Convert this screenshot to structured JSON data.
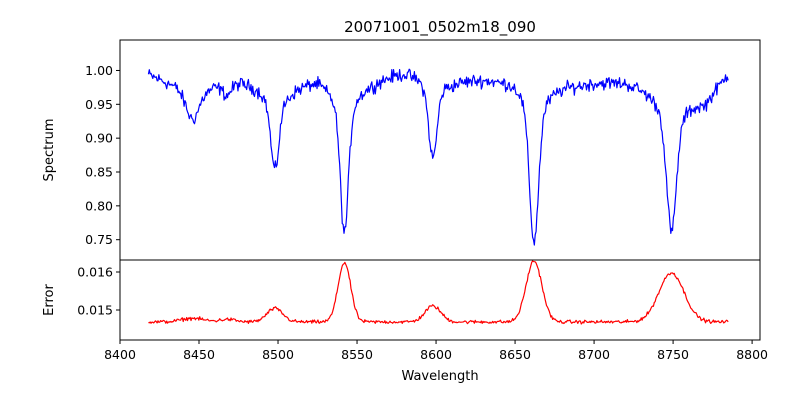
{
  "chart_data": {
    "type": "line",
    "title": "20071001_0502m18_090",
    "xlabel": "Wavelength",
    "xlim": [
      8400,
      8805
    ],
    "xticks": [
      "8400",
      "8450",
      "8500",
      "8550",
      "8600",
      "8650",
      "8700",
      "8750",
      "8800"
    ],
    "x_range": [
      8418,
      8785
    ],
    "grid": false,
    "legend": "none",
    "panels": [
      {
        "ylabel": "Spectrum",
        "ylim": [
          0.72,
          1.045
        ],
        "yticks": [
          "0.75",
          "0.80",
          "0.85",
          "0.90",
          "0.95",
          "1.00"
        ],
        "color": "#0000ff",
        "continuum": [
          [
            8418,
            0.995
          ],
          [
            8440,
            0.975
          ],
          [
            8455,
            0.975
          ],
          [
            8470,
            0.99
          ],
          [
            8490,
            0.98
          ],
          [
            8505,
            0.975
          ],
          [
            8525,
            1.0
          ],
          [
            8560,
            0.995
          ],
          [
            8580,
            1.005
          ],
          [
            8610,
            0.99
          ],
          [
            8640,
            1.0
          ],
          [
            8650,
            1.01
          ],
          [
            8690,
            0.99
          ],
          [
            8720,
            0.99
          ],
          [
            8740,
            0.98
          ],
          [
            8770,
            0.96
          ],
          [
            8785,
            1.0
          ]
        ],
        "lines": [
          {
            "center": 8542,
            "depth": 0.235,
            "core_width": 2.5,
            "wing_width": 11
          },
          {
            "center": 8662,
            "depth": 0.255,
            "core_width": 2.8,
            "wing_width": 13
          },
          {
            "center": 8498,
            "depth": 0.12,
            "core_width": 2.5,
            "wing_width": 7
          },
          {
            "center": 8598,
            "depth": 0.12,
            "core_width": 2.5,
            "wing_width": 7
          },
          {
            "center": 8749,
            "depth": 0.21,
            "core_width": 3.0,
            "wing_width": 11
          },
          {
            "center": 8446,
            "depth": 0.045,
            "core_width": 4.0,
            "wing_width": 6
          },
          {
            "center": 8468,
            "depth": 0.02,
            "core_width": 3.0,
            "wing_width": 5
          }
        ],
        "noise": 0.008
      },
      {
        "ylabel": "Error",
        "ylim": [
          0.01462,
          0.01617
        ],
        "yticks": [
          "0.015",
          "0.016"
        ],
        "color": "#ff0000",
        "baseline": 0.01497,
        "bumps": [
          {
            "center": 8542,
            "height": 0.00115,
            "width": 4
          },
          {
            "center": 8662,
            "height": 0.00118,
            "width": 5
          },
          {
            "center": 8498,
            "height": 0.00026,
            "width": 5
          },
          {
            "center": 8598,
            "height": 0.00031,
            "width": 5
          },
          {
            "center": 8749,
            "height": 0.00095,
            "width": 8
          },
          {
            "center": 8446,
            "height": 7e-05,
            "width": 7
          },
          {
            "center": 8468,
            "height": 5e-05,
            "width": 5
          }
        ],
        "noise": 2.8e-05
      }
    ]
  }
}
